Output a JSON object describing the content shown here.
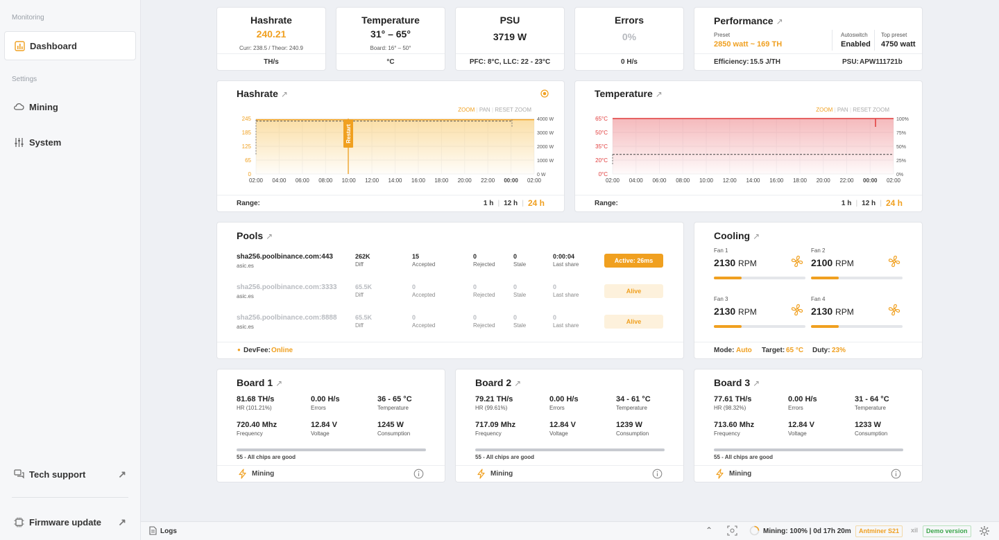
{
  "sidebar": {
    "section_monitoring": "Monitoring",
    "dashboard": "Dashboard",
    "section_settings": "Settings",
    "mining": "Mining",
    "system": "System",
    "tech_support": "Tech support",
    "firmware_update": "Firmware update"
  },
  "stats": {
    "hashrate": {
      "title": "Hashrate",
      "value": "240.21",
      "sub": "Curr: 238.5 / Theor: 240.9",
      "unit": "TH/s"
    },
    "temperature": {
      "title": "Temperature",
      "value": "31° – 65°",
      "sub": "Board: 16° – 50°",
      "unit": "°C"
    },
    "psu": {
      "title": "PSU",
      "value": "3719 W",
      "foot": "PFC: 8°C, LLC: 22 - 23°C"
    },
    "errors": {
      "title": "Errors",
      "value": "0%",
      "unit": "0 H/s"
    }
  },
  "performance": {
    "title": "Performance",
    "preset_label": "Preset",
    "preset_value": "2850 watt ~ 169 TH",
    "autoswitch_label": "Autoswitch",
    "autoswitch_value": "Enabled",
    "top_preset_label": "Top preset",
    "top_preset_value": "4750 watt",
    "efficiency_label": "Efficiency:",
    "efficiency_value": "15.5 J/TH",
    "psu_label": "PSU:",
    "psu_value": "APW111721b"
  },
  "hashrate_chart": {
    "title": "Hashrate",
    "toolbar": {
      "zoom": "ZOOM",
      "pan": "PAN",
      "reset": "RESET ZOOM"
    },
    "range_label": "Range:",
    "ranges": [
      "1 h",
      "12 h",
      "24 h"
    ],
    "restart_label": "Restart",
    "colors": {
      "accent": "#f0a020"
    }
  },
  "temperature_chart": {
    "title": "Temperature",
    "toolbar": {
      "zoom": "ZOOM",
      "pan": "PAN",
      "reset": "RESET ZOOM"
    },
    "range_label": "Range:",
    "ranges": [
      "1 h",
      "12 h",
      "24 h"
    ],
    "colors": {
      "accent": "#e03a3a"
    }
  },
  "chart_data": [
    {
      "type": "area",
      "title": "Hashrate",
      "x": [
        "02:00",
        "04:00",
        "06:00",
        "08:00",
        "10:00",
        "12:00",
        "14:00",
        "16:00",
        "18:00",
        "20:00",
        "22:00",
        "00:00",
        "02:00"
      ],
      "y_left_ticks": [
        "245",
        "185",
        "125",
        "65",
        "0"
      ],
      "y_right_ticks": [
        "4000 W",
        "3000 W",
        "2000 W",
        "1000 W",
        "0 W"
      ],
      "ylim": [
        0,
        245
      ],
      "series": [
        {
          "values": [
            240,
            240,
            240,
            240,
            240,
            240,
            240,
            240,
            240,
            240,
            240,
            240,
            240
          ]
        }
      ],
      "annotations": [
        "Restart"
      ]
    },
    {
      "type": "area",
      "title": "Temperature",
      "x": [
        "02:00",
        "04:00",
        "06:00",
        "08:00",
        "10:00",
        "12:00",
        "14:00",
        "16:00",
        "18:00",
        "20:00",
        "22:00",
        "00:00",
        "02:00"
      ],
      "y_left_ticks": [
        "65°C",
        "50°C",
        "35°C",
        "20°C",
        "0°C"
      ],
      "y_right_ticks": [
        "100%",
        "75%",
        "50%",
        "25%",
        "0%"
      ],
      "ylim": [
        0,
        65
      ],
      "series": [
        {
          "values": [
            65,
            65,
            65,
            65,
            65,
            65,
            65,
            65,
            65,
            65,
            65,
            65,
            65
          ]
        },
        {
          "values": [
            23,
            23,
            23,
            23,
            23,
            23,
            23,
            23,
            23,
            23,
            23,
            23,
            23
          ]
        }
      ]
    }
  ],
  "pools": {
    "title": "Pools",
    "rows": [
      {
        "url": "sha256.poolbinance.com:443",
        "user": "asic.es",
        "diff": "262K",
        "diff_label": "Diff",
        "accepted": "15",
        "accepted_label": "Accepted",
        "rejected": "0",
        "rejected_label": "Rejected",
        "stale": "0",
        "stale_label": "Stale",
        "last": "0:00:04",
        "last_label": "Last share",
        "status": "Active: 26ms"
      },
      {
        "url": "sha256.poolbinance.com:3333",
        "user": "asic.es",
        "diff": "65.5K",
        "diff_label": "Diff",
        "accepted": "0",
        "accepted_label": "Accepted",
        "rejected": "0",
        "rejected_label": "Rejected",
        "stale": "0",
        "stale_label": "Stale",
        "last": "0",
        "last_label": "Last share",
        "status": "Alive"
      },
      {
        "url": "sha256.poolbinance.com:8888",
        "user": "asic.es",
        "diff": "65.5K",
        "diff_label": "Diff",
        "accepted": "0",
        "accepted_label": "Accepted",
        "rejected": "0",
        "rejected_label": "Rejected",
        "stale": "0",
        "stale_label": "Stale",
        "last": "0",
        "last_label": "Last share",
        "status": "Alive"
      }
    ],
    "devfee_label": "DevFee:",
    "devfee_value": "Online"
  },
  "cooling": {
    "title": "Cooling",
    "fans": [
      {
        "label": "Fan 1",
        "rpm": "2130",
        "unit": "RPM",
        "duty": 0.3
      },
      {
        "label": "Fan 2",
        "rpm": "2100",
        "unit": "RPM",
        "duty": 0.3
      },
      {
        "label": "Fan 3",
        "rpm": "2130",
        "unit": "RPM",
        "duty": 0.3
      },
      {
        "label": "Fan 4",
        "rpm": "2130",
        "unit": "RPM",
        "duty": 0.3
      }
    ],
    "mode_label": "Mode:",
    "mode_value": "Auto",
    "target_label": "Target:",
    "target_value": "65 °C",
    "duty_label": "Duty:",
    "duty_value": "23%"
  },
  "boards": [
    {
      "title": "Board 1",
      "hr": "81.68 TH/s",
      "hr_label": "HR (101.21%)",
      "errors": "0.00 H/s",
      "errors_label": "Errors",
      "temp": "36 - 65 °C",
      "temp_label": "Temperature",
      "freq": "720.40 Mhz",
      "freq_label": "Frequency",
      "volt": "12.84 V",
      "volt_label": "Voltage",
      "cons": "1245 W",
      "cons_label": "Consumption",
      "chips": "55 - All chips are good",
      "state": "Mining"
    },
    {
      "title": "Board 2",
      "hr": "79.21 TH/s",
      "hr_label": "HR (99.61%)",
      "errors": "0.00 H/s",
      "errors_label": "Errors",
      "temp": "34 - 61 °C",
      "temp_label": "Temperature",
      "freq": "717.09 Mhz",
      "freq_label": "Frequency",
      "volt": "12.84 V",
      "volt_label": "Voltage",
      "cons": "1239 W",
      "cons_label": "Consumption",
      "chips": "55 - All chips are good",
      "state": "Mining"
    },
    {
      "title": "Board 3",
      "hr": "77.61 TH/s",
      "hr_label": "HR (98.32%)",
      "errors": "0.00 H/s",
      "errors_label": "Errors",
      "temp": "31 - 64 °C",
      "temp_label": "Temperature",
      "freq": "713.60 Mhz",
      "freq_label": "Frequency",
      "volt": "12.84 V",
      "volt_label": "Voltage",
      "cons": "1233 W",
      "cons_label": "Consumption",
      "chips": "55 - All chips are good",
      "state": "Mining"
    }
  ],
  "statusbar": {
    "logs": "Logs",
    "mining_status": "Mining: 100% | 0d 17h 20m",
    "model": "Antminer S21",
    "xil": "xil",
    "demo": "Demo version"
  }
}
